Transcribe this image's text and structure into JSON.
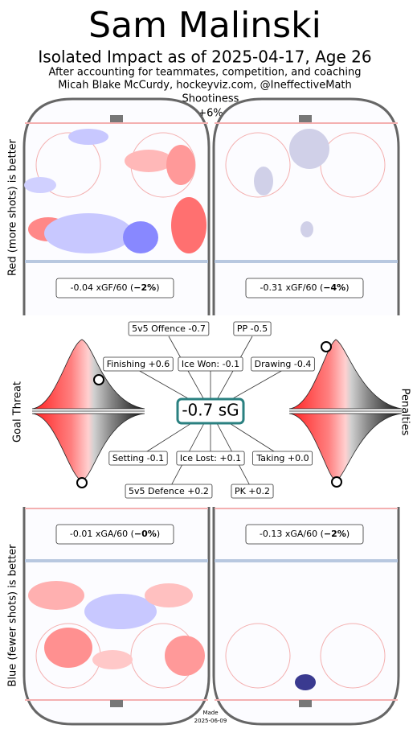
{
  "title": "Sam Malinski",
  "subtitle": "Isolated Impact as of 2025-04-17, Age 26",
  "notes": [
    "After accounting for teammates, competition, and coaching",
    "Micah Blake McCurdy, hockeyviz.com, @IneffectiveMath"
  ],
  "shootiness": {
    "label": "Shootiness",
    "value": "+6%"
  },
  "side_labels": {
    "offence": "Red (more shots) is better",
    "defence": "Blue (fewer shots) is better",
    "goal_threat": "Goal Threat",
    "penalties": "Penalties"
  },
  "rinks": [
    [
      "-0.04 xGF/60 (",
      "−2%",
      ")"
    ],
    [
      "-0.31 xGF/60 (",
      "−4%",
      ")"
    ],
    [
      "-0.01 xGA/60 (",
      "−0%",
      ")"
    ],
    [
      "-0.13 xGA/60 (",
      "−2%",
      ")"
    ]
  ],
  "center": "-0.7 sG",
  "components": {
    "offence": "5v5 Offence -0.7",
    "pp": "PP -0.5",
    "finishing": "Finishing +0.6",
    "ice_won": "Ice Won: -0.1",
    "drawing": "Drawing -0.4",
    "setting": "Setting -0.1",
    "ice_lost": "Ice Lost: +0.1",
    "taking": "Taking +0.0",
    "defence": "5v5 Defence +0.2",
    "pk": "PK +0.2"
  },
  "footer": [
    "Made",
    "2025-06-09"
  ]
}
